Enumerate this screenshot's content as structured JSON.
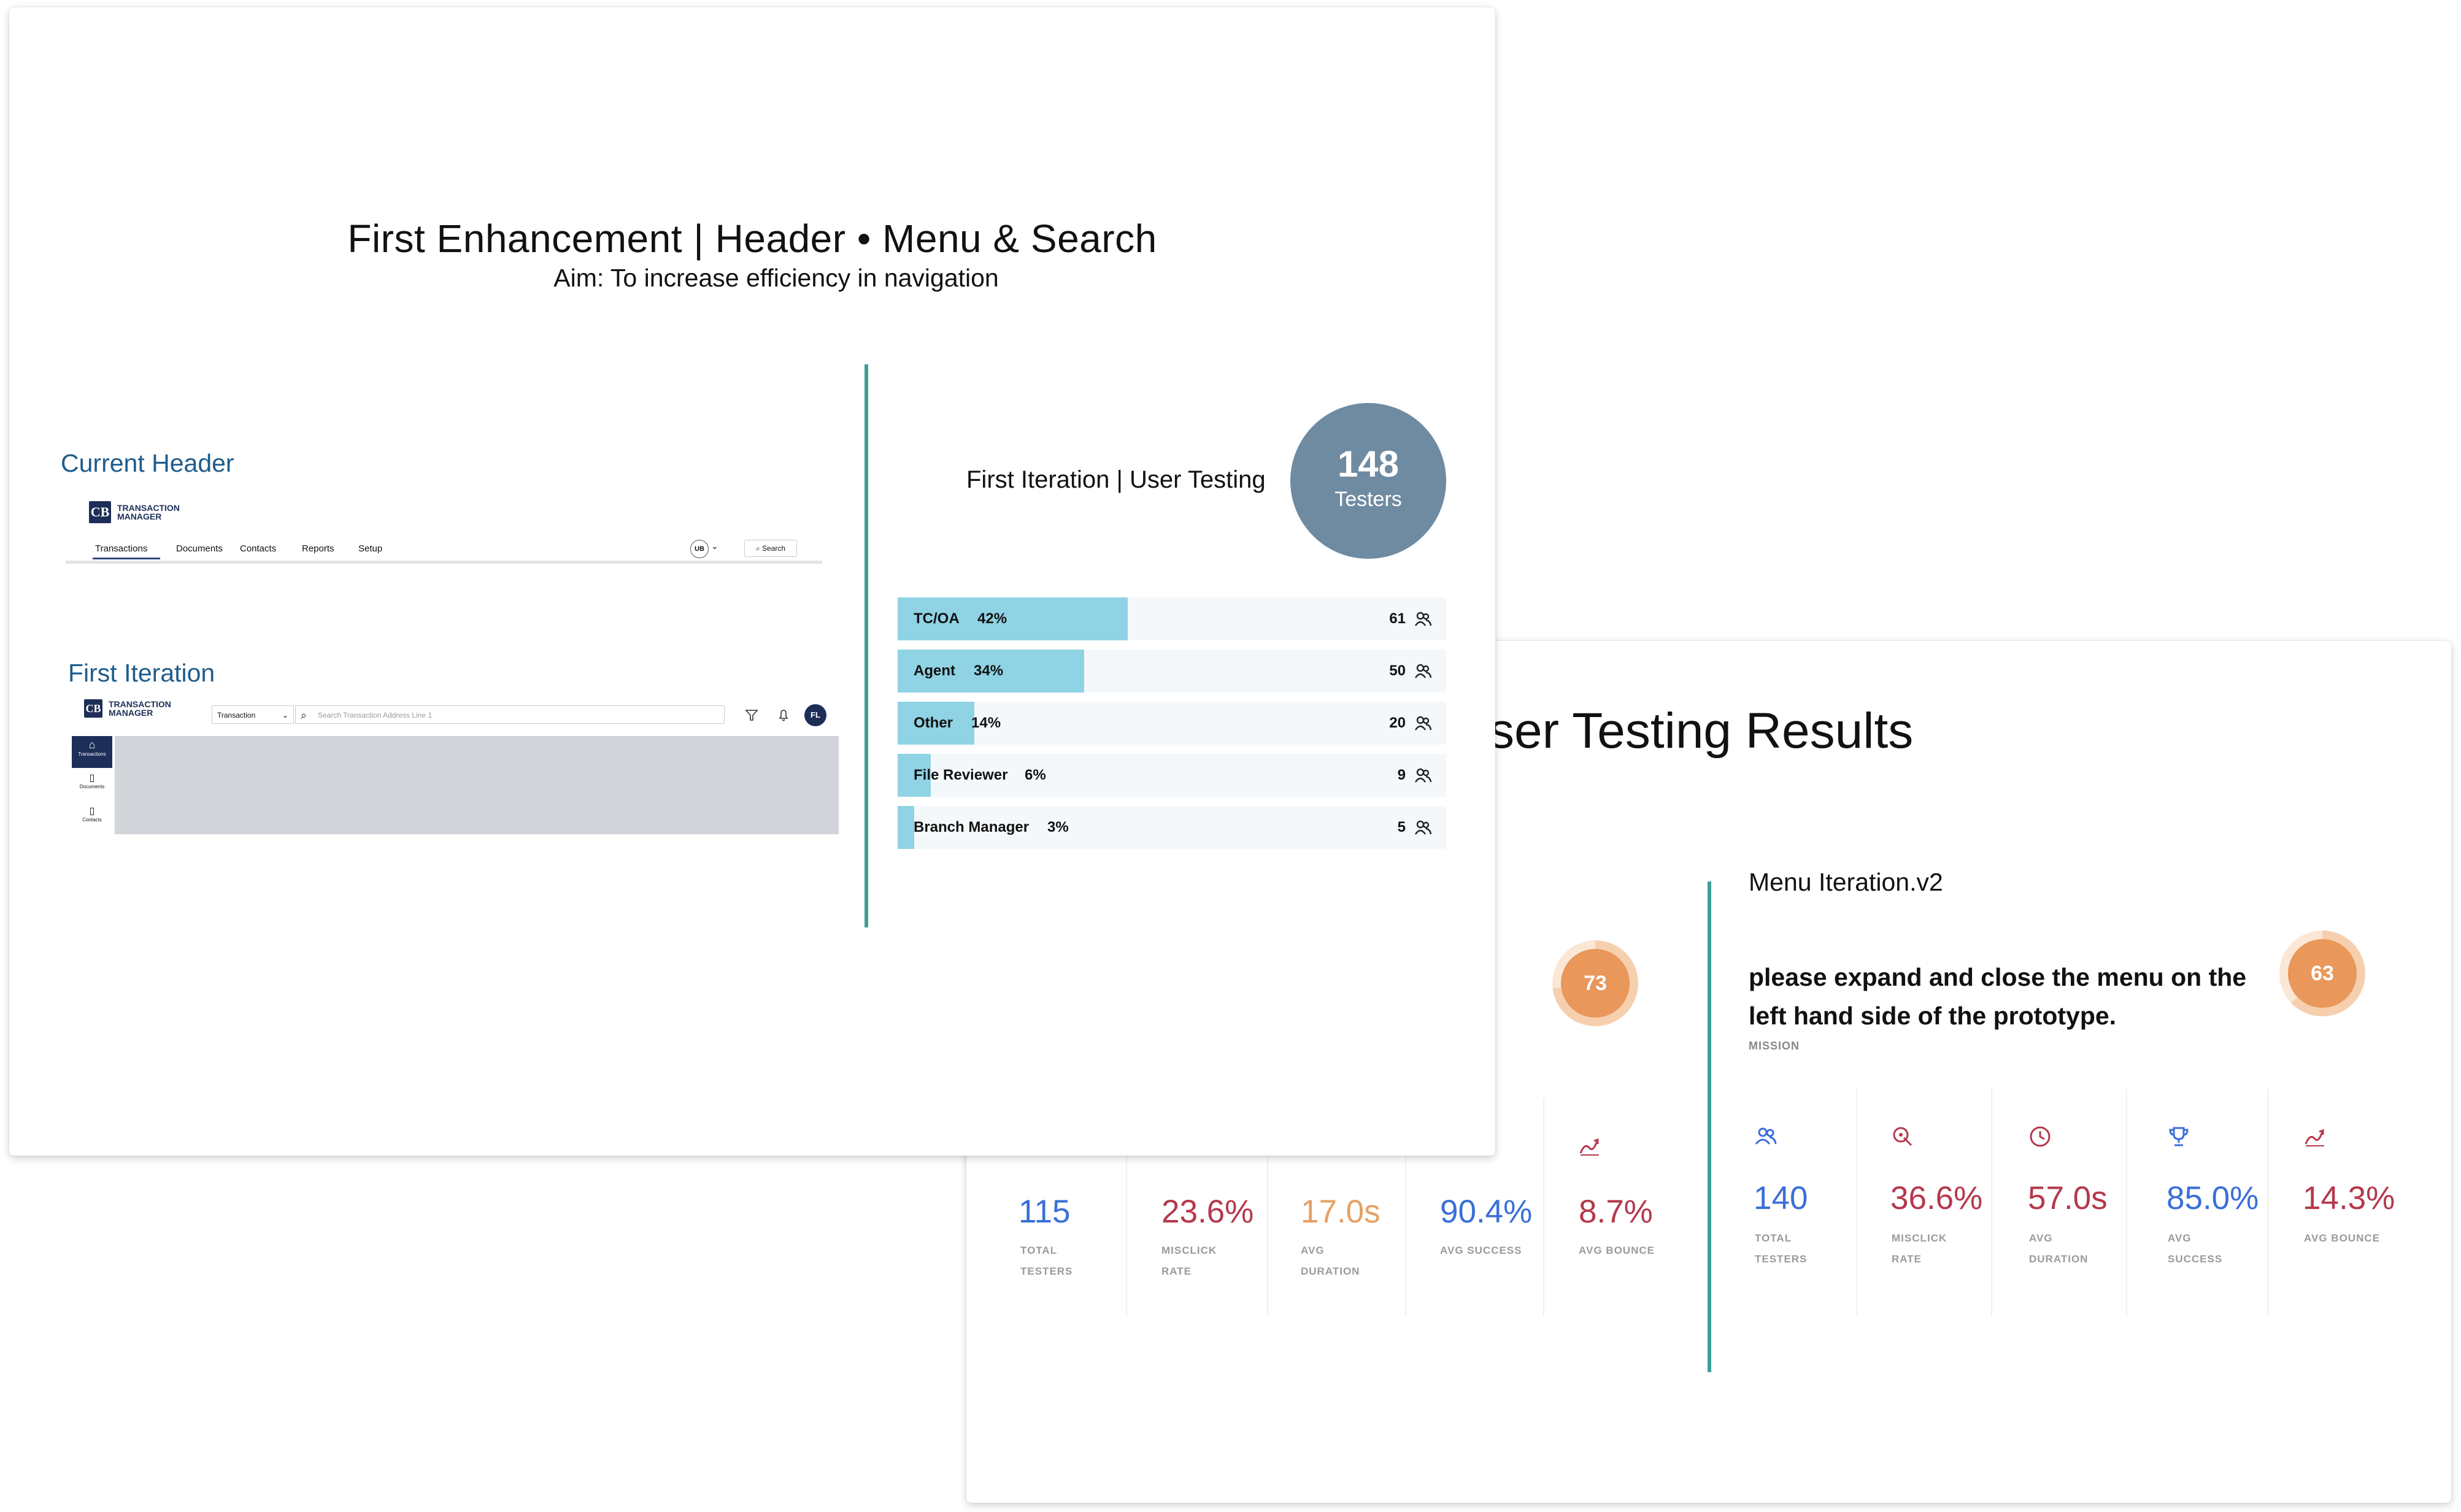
{
  "front_slide": {
    "title": "First Enhancement | Header • Menu & Search",
    "aim": "Aim: To increase efficiency in navigation",
    "current_header": {
      "label": "Current Header",
      "logo_text": "TRANSACTION MANAGER",
      "nav": [
        "Transactions",
        "Documents",
        "Contacts",
        "Reports",
        "Setup"
      ],
      "avatar": "UB",
      "search_label": "Search"
    },
    "first_iteration": {
      "label": "First Iteration",
      "logo_text": "TRANSACTION MANAGER",
      "dropdown_value": "Transaction",
      "search_placeholder": "Search Transaction Address Line 1",
      "avatar": "FL",
      "side_nav": [
        "Transactions",
        "Documents",
        "Contacts"
      ]
    },
    "user_testing": {
      "title": "First Iteration | User Testing",
      "testers_count": "148",
      "testers_label": "Testers",
      "rows": [
        {
          "label": "TC/OA",
          "pct": "42%",
          "count": "61",
          "fraction": 0.42
        },
        {
          "label": "Agent",
          "pct": "34%",
          "count": "50",
          "fraction": 0.34
        },
        {
          "label": "Other",
          "pct": "14%",
          "count": "20",
          "fraction": 0.14
        },
        {
          "label": "File Reviewer",
          "pct": "6%",
          "count": "9",
          "fraction": 0.06
        },
        {
          "label": "Branch Manager",
          "pct": "3%",
          "count": "5",
          "fraction": 0.03
        }
      ]
    }
  },
  "back_slide": {
    "title_visible": "ser Testing Results",
    "left": {
      "score": "73",
      "score_fraction": 0.73,
      "stats": [
        {
          "value": "115",
          "label1": "TOTAL",
          "label2": "TESTERS",
          "color": "#3a6fd8"
        },
        {
          "value": "23.6%",
          "label1": "MISCLICK",
          "label2": "RATE",
          "color": "#b5384c"
        },
        {
          "value": "17.0s",
          "label1": "AVG",
          "label2": "DURATION",
          "color": "#e6a066"
        },
        {
          "value": "90.4%",
          "label1": "AVG SUCCESS",
          "label2": "",
          "color": "#3a6fd8"
        },
        {
          "value": "8.7%",
          "label1": "AVG BOUNCE",
          "label2": "",
          "color": "#b5384c"
        }
      ]
    },
    "right": {
      "heading": "Menu Iteration.v2",
      "mission_line1": "please expand and close the menu on the",
      "mission_line2": "left hand side of the prototype.",
      "mission_label": "MISSION",
      "score": "63",
      "score_fraction": 0.63,
      "stats": [
        {
          "value": "140",
          "label1": "TOTAL",
          "label2": "TESTERS",
          "color": "#3a6fd8",
          "icon": "users-icon"
        },
        {
          "value": "36.6%",
          "label1": "MISCLICK",
          "label2": "RATE",
          "color": "#b5384c",
          "icon": "target-icon"
        },
        {
          "value": "57.0s",
          "label1": "AVG",
          "label2": "DURATION",
          "color": "#b5384c",
          "icon": "clock-icon"
        },
        {
          "value": "85.0%",
          "label1": "AVG",
          "label2": "SUCCESS",
          "color": "#3a6fd8",
          "icon": "trophy-icon"
        },
        {
          "value": "14.3%",
          "label1": "AVG BOUNCE",
          "label2": "",
          "color": "#b5384c",
          "icon": "bounce-icon"
        }
      ]
    }
  },
  "colors": {
    "accent_teal": "#3fa096",
    "bar_fill": "#8fd3e4",
    "circle": "#6f8ba2",
    "score_orange": "#e9975a",
    "heading_blue": "#1f5c8b"
  }
}
